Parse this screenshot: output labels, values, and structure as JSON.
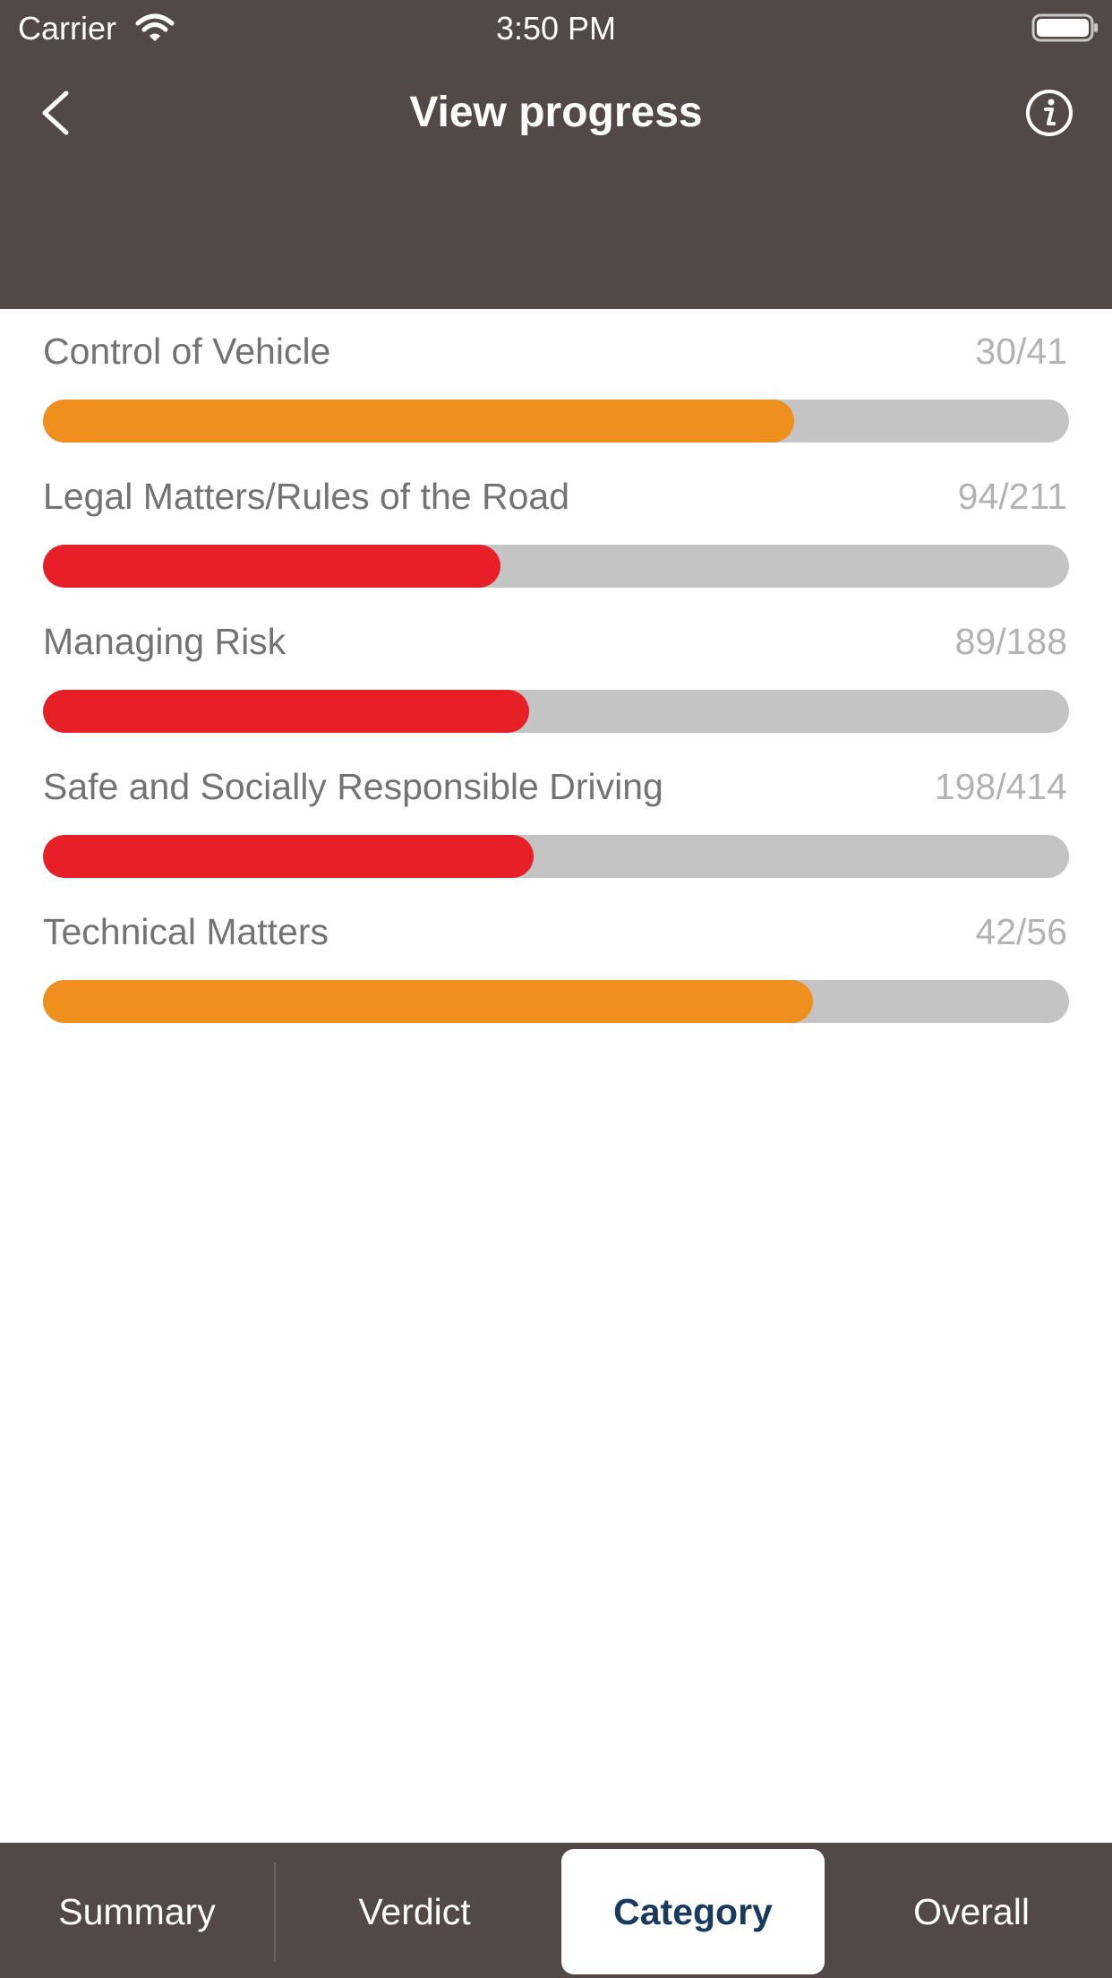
{
  "status_bar": {
    "carrier": "Carrier",
    "time": "3:50 PM",
    "wifi_icon": "wifi-icon",
    "battery_icon": "battery-full-icon"
  },
  "nav": {
    "title": "View progress",
    "back_icon": "chevron-left-icon",
    "info_icon": "info-icon"
  },
  "colors": {
    "header_bg": "#534848",
    "track": "#c4c4c4",
    "orange": "#ee8f1e",
    "red": "#e62026",
    "selected_tab_text": "#173a5e"
  },
  "categories": [
    {
      "label": "Control of Vehicle",
      "count": "30/41",
      "correct": 30,
      "total": 41,
      "color": "#ee8f1e"
    },
    {
      "label": "Legal Matters/Rules of the Road",
      "count": "94/211",
      "correct": 94,
      "total": 211,
      "color": "#e62026"
    },
    {
      "label": "Managing Risk",
      "count": "89/188",
      "correct": 89,
      "total": 188,
      "color": "#e62026"
    },
    {
      "label": "Safe and Socially Responsible Driving",
      "count": "198/414",
      "correct": 198,
      "total": 414,
      "color": "#e62026"
    },
    {
      "label": "Technical Matters",
      "count": "42/56",
      "correct": 42,
      "total": 56,
      "color": "#ee8f1e"
    }
  ],
  "tabs": [
    {
      "label": "Summary",
      "selected": false
    },
    {
      "label": "Verdict",
      "selected": false
    },
    {
      "label": "Category",
      "selected": true
    },
    {
      "label": "Overall",
      "selected": false
    }
  ]
}
